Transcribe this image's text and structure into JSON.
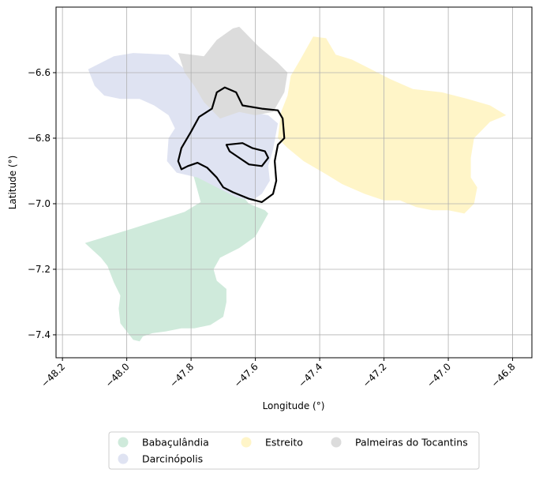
{
  "chart_data": {
    "type": "map",
    "xlabel": "Longitude (°)",
    "ylabel": "Latitude (°)",
    "xlim": [
      -48.22,
      -46.74
    ],
    "ylim": [
      -7.47,
      -6.4
    ],
    "x_ticks": [
      -48.2,
      -48.0,
      -47.8,
      -47.6,
      -47.4,
      -47.2,
      -47.0,
      -46.8
    ],
    "x_tick_labels": [
      "−48.2",
      "−48.0",
      "−47.8",
      "−47.6",
      "−47.4",
      "−47.2",
      "−47.0",
      "−46.8"
    ],
    "y_ticks": [
      -6.6,
      -6.8,
      -7.0,
      -7.2,
      -7.4
    ],
    "y_tick_labels": [
      "−6.6",
      "−6.8",
      "−7.0",
      "−7.2",
      "−7.4"
    ],
    "grid": true,
    "legend_position": "bottom-center",
    "regions": [
      {
        "name": "Babaçulândia",
        "color": "#cfeadb",
        "polygon": [
          [
            -48.13,
            -7.12
          ],
          [
            -47.98,
            -7.075
          ],
          [
            -47.82,
            -7.025
          ],
          [
            -47.77,
            -6.995
          ],
          [
            -47.795,
            -6.905
          ],
          [
            -47.72,
            -6.92
          ],
          [
            -47.65,
            -6.965
          ],
          [
            -47.62,
            -7.0
          ],
          [
            -47.57,
            -7.02
          ],
          [
            -47.56,
            -7.03
          ],
          [
            -47.6,
            -7.1
          ],
          [
            -47.65,
            -7.135
          ],
          [
            -47.71,
            -7.165
          ],
          [
            -47.73,
            -7.2
          ],
          [
            -47.72,
            -7.235
          ],
          [
            -47.69,
            -7.26
          ],
          [
            -47.69,
            -7.3
          ],
          [
            -47.7,
            -7.345
          ],
          [
            -47.74,
            -7.37
          ],
          [
            -47.79,
            -7.38
          ],
          [
            -47.83,
            -7.38
          ],
          [
            -47.88,
            -7.39
          ],
          [
            -47.92,
            -7.395
          ],
          [
            -47.95,
            -7.405
          ],
          [
            -47.96,
            -7.42
          ],
          [
            -47.98,
            -7.415
          ],
          [
            -48.0,
            -7.39
          ],
          [
            -48.02,
            -7.365
          ],
          [
            -48.025,
            -7.32
          ],
          [
            -48.02,
            -7.28
          ],
          [
            -48.04,
            -7.24
          ],
          [
            -48.06,
            -7.19
          ],
          [
            -48.08,
            -7.165
          ]
        ]
      },
      {
        "name": "Darcinópolis",
        "color": "#dfe3f2",
        "polygon": [
          [
            -48.12,
            -6.59
          ],
          [
            -48.04,
            -6.55
          ],
          [
            -47.98,
            -6.54
          ],
          [
            -47.87,
            -6.545
          ],
          [
            -47.82,
            -6.59
          ],
          [
            -47.76,
            -6.64
          ],
          [
            -47.71,
            -6.69
          ],
          [
            -47.64,
            -6.715
          ],
          [
            -47.56,
            -6.73
          ],
          [
            -47.53,
            -6.755
          ],
          [
            -47.545,
            -6.835
          ],
          [
            -47.56,
            -6.885
          ],
          [
            -47.555,
            -6.93
          ],
          [
            -47.58,
            -6.97
          ],
          [
            -47.61,
            -6.99
          ],
          [
            -47.66,
            -6.98
          ],
          [
            -47.72,
            -6.95
          ],
          [
            -47.78,
            -6.92
          ],
          [
            -47.845,
            -6.905
          ],
          [
            -47.875,
            -6.87
          ],
          [
            -47.87,
            -6.8
          ],
          [
            -47.85,
            -6.77
          ],
          [
            -47.87,
            -6.73
          ],
          [
            -47.915,
            -6.7
          ],
          [
            -47.96,
            -6.68
          ],
          [
            -48.02,
            -6.68
          ],
          [
            -48.07,
            -6.67
          ],
          [
            -48.1,
            -6.64
          ]
        ]
      },
      {
        "name": "Estreito",
        "color": "#fff5c8",
        "polygon": [
          [
            -47.46,
            -6.56
          ],
          [
            -47.42,
            -6.49
          ],
          [
            -47.38,
            -6.495
          ],
          [
            -47.35,
            -6.545
          ],
          [
            -47.3,
            -6.56
          ],
          [
            -47.24,
            -6.59
          ],
          [
            -47.18,
            -6.62
          ],
          [
            -47.11,
            -6.65
          ],
          [
            -47.02,
            -6.66
          ],
          [
            -46.94,
            -6.68
          ],
          [
            -46.87,
            -6.7
          ],
          [
            -46.82,
            -6.73
          ],
          [
            -46.87,
            -6.75
          ],
          [
            -46.92,
            -6.8
          ],
          [
            -46.93,
            -6.86
          ],
          [
            -46.93,
            -6.92
          ],
          [
            -46.91,
            -6.95
          ],
          [
            -46.92,
            -7.0
          ],
          [
            -46.95,
            -7.03
          ],
          [
            -47.0,
            -7.02
          ],
          [
            -47.05,
            -7.02
          ],
          [
            -47.1,
            -7.01
          ],
          [
            -47.15,
            -6.99
          ],
          [
            -47.2,
            -6.99
          ],
          [
            -47.26,
            -6.97
          ],
          [
            -47.33,
            -6.94
          ],
          [
            -47.38,
            -6.91
          ],
          [
            -47.45,
            -6.87
          ],
          [
            -47.5,
            -6.83
          ],
          [
            -47.53,
            -6.8
          ],
          [
            -47.52,
            -6.72
          ],
          [
            -47.5,
            -6.67
          ],
          [
            -47.49,
            -6.61
          ]
        ]
      },
      {
        "name": "Palmeiras do Tocantins",
        "color": "#dcdcdc",
        "polygon": [
          [
            -47.84,
            -6.54
          ],
          [
            -47.76,
            -6.55
          ],
          [
            -47.72,
            -6.5
          ],
          [
            -47.67,
            -6.465
          ],
          [
            -47.65,
            -6.46
          ],
          [
            -47.59,
            -6.52
          ],
          [
            -47.53,
            -6.57
          ],
          [
            -47.5,
            -6.6
          ],
          [
            -47.51,
            -6.66
          ],
          [
            -47.545,
            -6.72
          ],
          [
            -47.6,
            -6.73
          ],
          [
            -47.65,
            -6.72
          ],
          [
            -47.71,
            -6.74
          ],
          [
            -47.76,
            -6.69
          ],
          [
            -47.79,
            -6.64
          ],
          [
            -47.82,
            -6.6
          ]
        ]
      }
    ],
    "outline": {
      "color": "#000000",
      "rings": [
        [
          [
            -47.695,
            -6.645
          ],
          [
            -47.66,
            -6.66
          ],
          [
            -47.64,
            -6.7
          ],
          [
            -47.58,
            -6.71
          ],
          [
            -47.53,
            -6.715
          ],
          [
            -47.515,
            -6.74
          ],
          [
            -47.51,
            -6.8
          ],
          [
            -47.53,
            -6.82
          ],
          [
            -47.54,
            -6.87
          ],
          [
            -47.535,
            -6.93
          ],
          [
            -47.545,
            -6.97
          ],
          [
            -47.58,
            -6.995
          ],
          [
            -47.62,
            -6.985
          ],
          [
            -47.67,
            -6.965
          ],
          [
            -47.7,
            -6.95
          ],
          [
            -47.72,
            -6.92
          ],
          [
            -47.75,
            -6.89
          ],
          [
            -47.78,
            -6.875
          ],
          [
            -47.81,
            -6.885
          ],
          [
            -47.83,
            -6.895
          ],
          [
            -47.84,
            -6.87
          ],
          [
            -47.83,
            -6.83
          ],
          [
            -47.8,
            -6.78
          ],
          [
            -47.775,
            -6.735
          ],
          [
            -47.735,
            -6.71
          ],
          [
            -47.72,
            -6.66
          ]
        ],
        [
          [
            -47.69,
            -6.82
          ],
          [
            -47.64,
            -6.815
          ],
          [
            -47.61,
            -6.83
          ],
          [
            -47.57,
            -6.84
          ],
          [
            -47.56,
            -6.86
          ],
          [
            -47.58,
            -6.885
          ],
          [
            -47.62,
            -6.88
          ],
          [
            -47.65,
            -6.86
          ],
          [
            -47.68,
            -6.84
          ]
        ]
      ]
    },
    "legend": [
      {
        "label": "Babaçulândia",
        "color": "#cfeadb"
      },
      {
        "label": "Darcinópolis",
        "color": "#dfe3f2"
      },
      {
        "label": "Estreito",
        "color": "#fff5c8"
      },
      {
        "label": "Palmeiras do Tocantins",
        "color": "#dcdcdc"
      }
    ]
  }
}
